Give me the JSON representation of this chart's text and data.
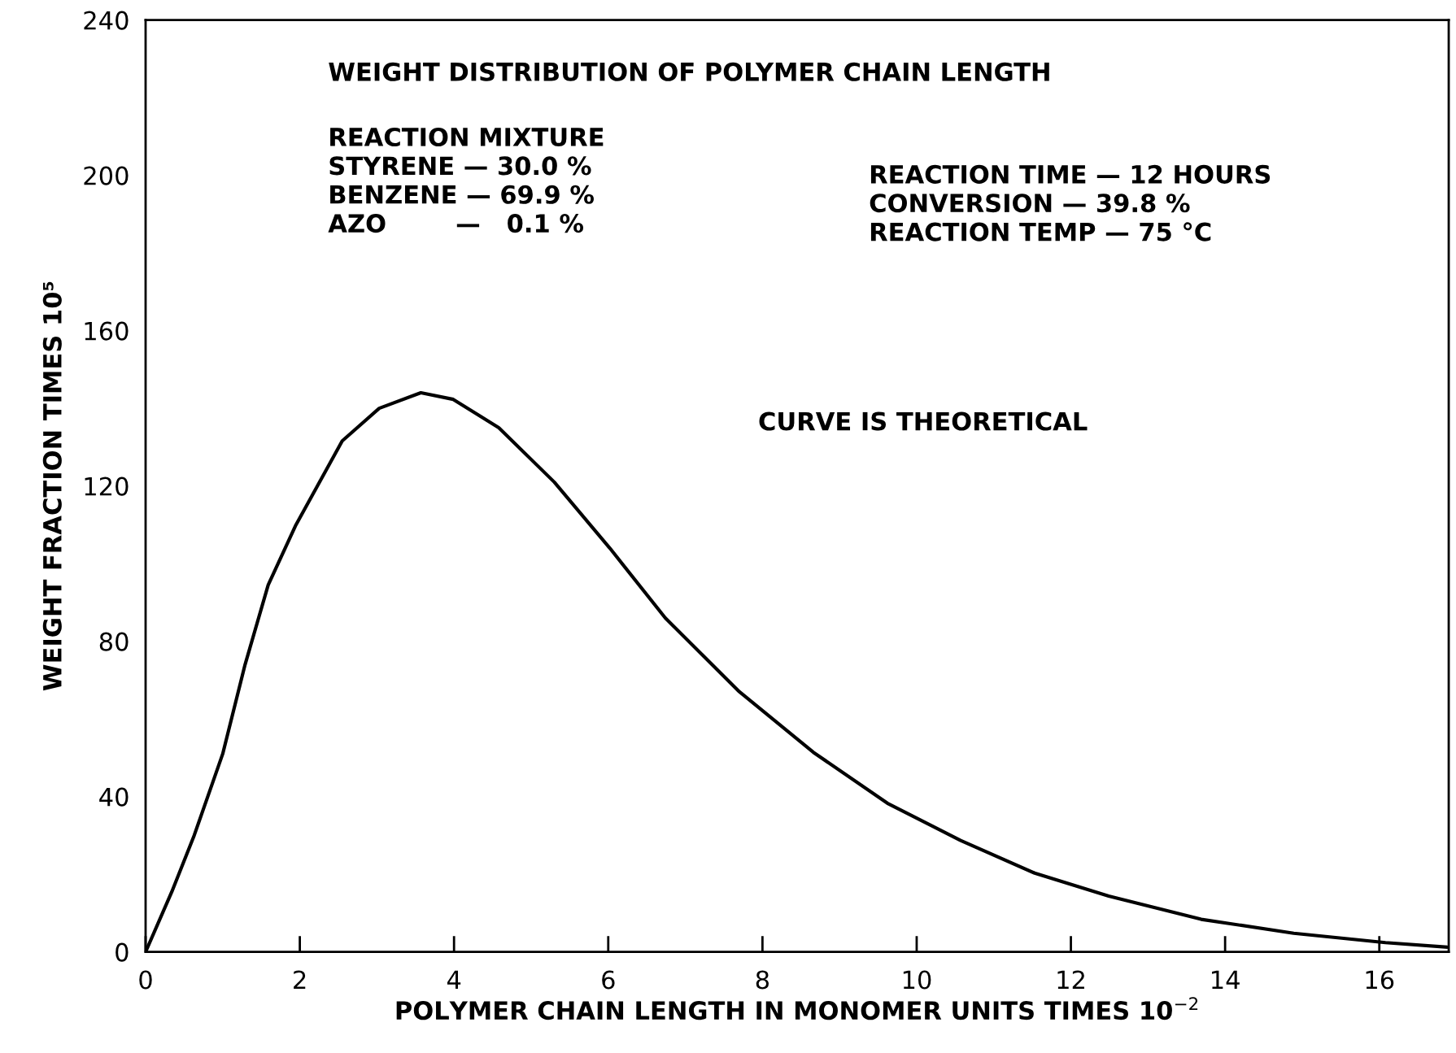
{
  "chart_data": {
    "type": "line",
    "title": "WEIGHT DISTRIBUTION OF POLYMER CHAIN LENGTH",
    "xlabel": "POLYMER CHAIN LENGTH IN MONOMER UNITS TIMES 10$^{−2}$",
    "ylabel": "WEIGHT FRACTION TIMES 10⁵",
    "annotations": [
      "REACTION MIXTURE\nSTYRENE — 30.0 %\nBENZENE — 69.9 %\nAZO        —   0.1 %",
      "REACTION TIME — 12 HOURS\nCONVERSION — 39.8 %\nREACTION TEMP — 75 °C",
      "CURVE IS THEORETICAL"
    ],
    "x": [
      0,
      0.34,
      0.63,
      1.0,
      1.29,
      1.59,
      1.95,
      2.55,
      3.03,
      3.57,
      3.99,
      4.58,
      5.3,
      6.02,
      6.74,
      7.7,
      8.66,
      9.62,
      10.57,
      11.53,
      12.49,
      13.69,
      14.89,
      16.08,
      16.9
    ],
    "series": [
      {
        "color": "#000000",
        "values": [
          0,
          15.5,
          30,
          51,
          74,
          94.5,
          110,
          131.6,
          140,
          144,
          142.3,
          135,
          121,
          104,
          86,
          67,
          51.4,
          38.3,
          28.7,
          20.3,
          14.4,
          8.4,
          4.8,
          2.4,
          1.2
        ]
      }
    ],
    "xlim": [
      0,
      16.9
    ],
    "ylim": [
      0,
      240
    ],
    "xticks": [
      0,
      2,
      4,
      6,
      8,
      10,
      12,
      14,
      16
    ],
    "yticks": [
      0,
      40,
      80,
      120,
      160,
      200,
      240
    ],
    "grid": false,
    "legend": false,
    "marker": "none",
    "line_style": "solid"
  }
}
